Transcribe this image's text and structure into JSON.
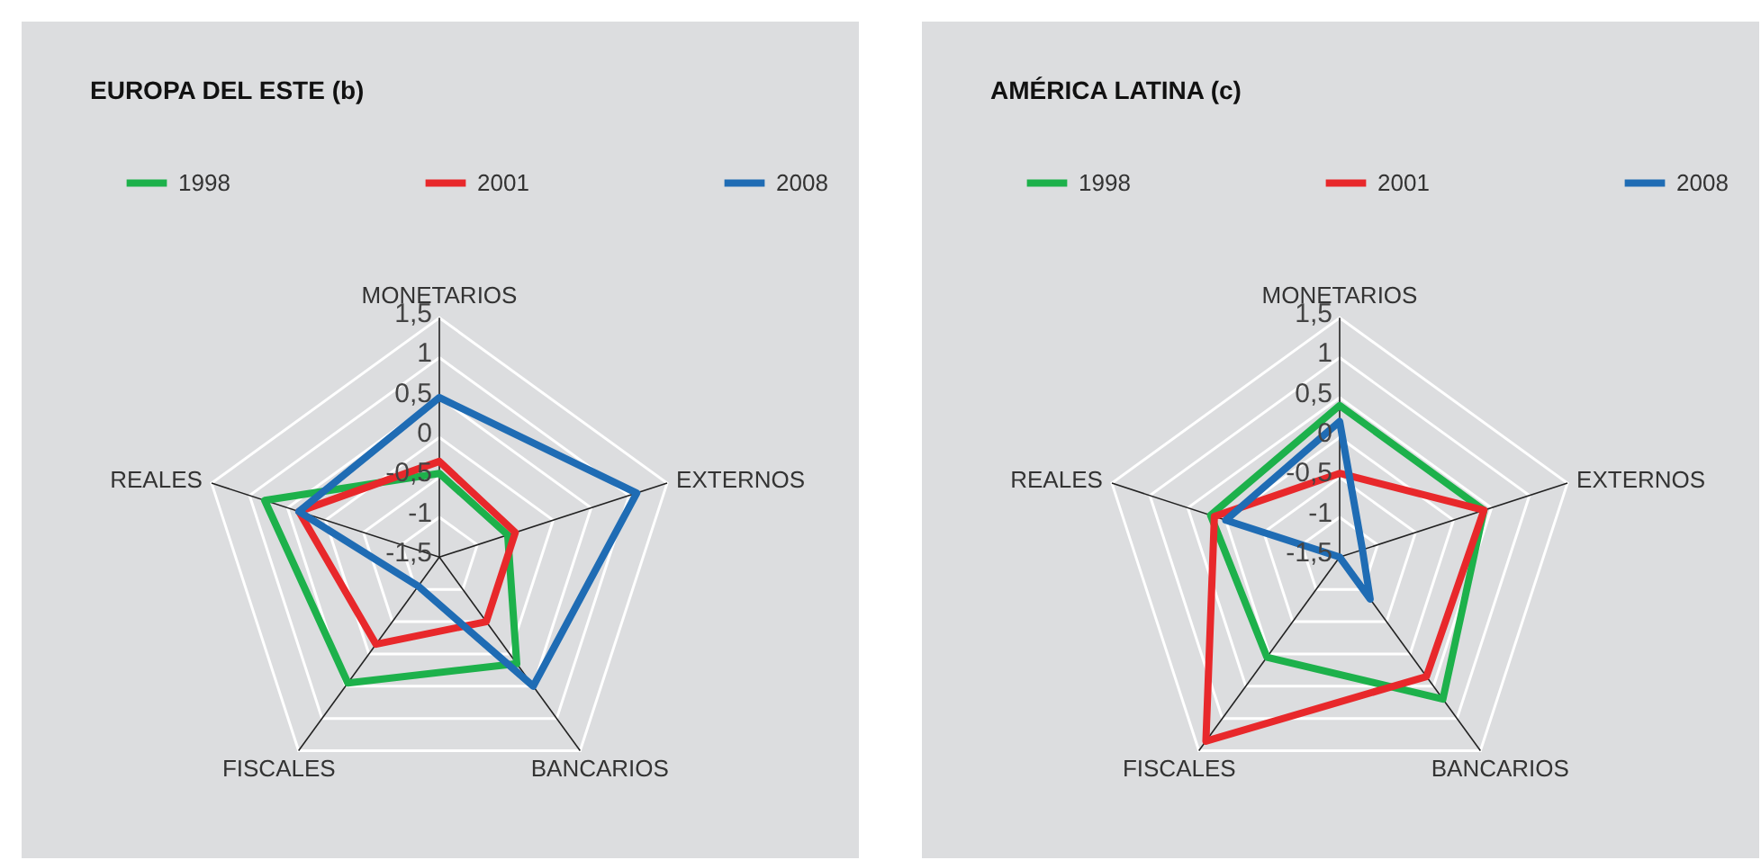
{
  "chart_data": [
    {
      "type": "radar",
      "title": "EUROPA DEL ESTE (b)",
      "categories": [
        "MONETARIOS",
        "EXTERNOS",
        "BANCARIOS",
        "FISCALES",
        "REALES"
      ],
      "ylim": [
        -1.5,
        1.5
      ],
      "yticks": [
        {
          "value": -1.5,
          "label": "-1,5"
        },
        -1,
        {
          "value": -0.5,
          "label": "-0,5"
        },
        0,
        {
          "value": 0.5,
          "label": "0,5"
        },
        1,
        {
          "value": 1.5,
          "label": "1,5"
        }
      ],
      "grid": true,
      "legend": "top",
      "series": [
        {
          "name": "1998",
          "color": "#1db14b",
          "values": [
            -0.45,
            -0.6,
            0.15,
            0.45,
            0.8
          ]
        },
        {
          "name": "2001",
          "color": "#e8282b",
          "values": [
            -0.3,
            -0.5,
            -0.5,
            -0.15,
            0.35
          ]
        },
        {
          "name": "2008",
          "color": "#1f6cb4",
          "values": [
            0.5,
            1.1,
            0.5,
            -1.05,
            0.35
          ]
        }
      ]
    },
    {
      "type": "radar",
      "title": "AMÉRICA LATINA (c)",
      "categories": [
        "MONETARIOS",
        "EXTERNOS",
        "BANCARIOS",
        "FISCALES",
        "REALES"
      ],
      "ylim": [
        -1.5,
        1.5
      ],
      "yticks": [
        {
          "value": -1.5,
          "label": "-1,5"
        },
        -1,
        {
          "value": -0.5,
          "label": "-0,5"
        },
        0,
        {
          "value": 0.5,
          "label": "0,5"
        },
        1,
        {
          "value": 1.5,
          "label": "1,5"
        }
      ],
      "grid": true,
      "legend": "top",
      "series": [
        {
          "name": "1998",
          "color": "#1db14b",
          "values": [
            0.4,
            0.4,
            0.7,
            0.05,
            0.2
          ]
        },
        {
          "name": "2001",
          "color": "#e8282b",
          "values": [
            -0.45,
            0.4,
            0.35,
            1.35,
            0.15
          ]
        },
        {
          "name": "2008",
          "color": "#1f6cb4",
          "values": [
            0.2,
            -1.2,
            -0.85,
            -1.5,
            0.0
          ]
        }
      ]
    }
  ]
}
